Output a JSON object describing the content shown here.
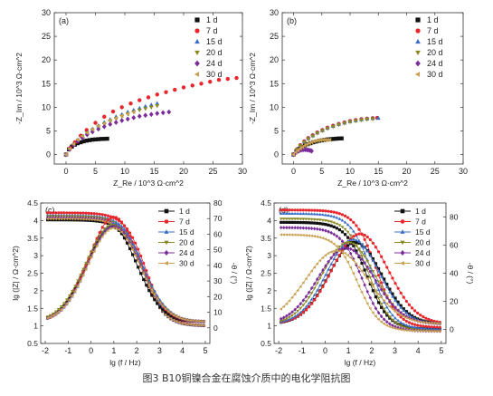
{
  "caption": "图3 B10铜镍合金在腐蚀介质中的电化学阻抗图",
  "colors": {
    "1 d": "#111111",
    "7 d": "#e8262c",
    "15 d": "#3a6fc8",
    "20 d": "#8a8a24",
    "24 d": "#7a2c9a",
    "30 d": "#c8a050"
  },
  "chart_data": [
    {
      "panel": "(a)",
      "type": "scatter",
      "xlabel": "Z_Re / 10^3 Ω·cm^2",
      "ylabel": "-Z_Im / 10^3 Ω·cm^2",
      "xlim": [
        -2,
        30
      ],
      "ylim": [
        -2,
        30
      ],
      "xticks": [
        0,
        5,
        10,
        15,
        20,
        25,
        30
      ],
      "yticks": [
        0,
        5,
        10,
        15,
        20,
        25,
        30
      ],
      "legend": "top-right",
      "series": [
        {
          "name": "1 d",
          "marker": "square",
          "x": [
            0,
            0.5,
            1,
            1.5,
            2,
            2.5,
            3,
            3.5,
            4,
            4.5,
            5,
            5.5,
            6,
            6.5,
            7
          ],
          "y": [
            0,
            1.1,
            1.7,
            2.1,
            2.4,
            2.6,
            2.8,
            2.95,
            3.05,
            3.15,
            3.2,
            3.25,
            3.3,
            3.32,
            3.35
          ]
        },
        {
          "name": "7 d",
          "marker": "circle",
          "x": [
            0,
            0.7,
            1.5,
            2.5,
            3.5,
            5,
            6.5,
            8,
            9.5,
            11,
            12.5,
            14,
            15.5,
            17,
            18.5,
            20,
            21.5,
            23,
            24.5,
            26,
            27.5,
            29
          ],
          "y": [
            0,
            1.4,
            2.6,
            4,
            5.2,
            6.7,
            8,
            9.1,
            10,
            10.8,
            11.5,
            12.1,
            12.7,
            13.2,
            13.7,
            14.2,
            14.6,
            15,
            15.4,
            15.8,
            16,
            16.2
          ]
        },
        {
          "name": "15 d",
          "marker": "triangle-up",
          "x": [
            0,
            0.6,
            1.3,
            2,
            2.8,
            3.6,
            4.5,
            5.5,
            6.5,
            7.5,
            8.5,
            9.5,
            10.5,
            11.5,
            12.5,
            13.5,
            14.5,
            15.5
          ],
          "y": [
            0,
            1.2,
            2.2,
            3.1,
            3.9,
            4.7,
            5.4,
            6.1,
            6.8,
            7.4,
            8,
            8.5,
            9,
            9.4,
            9.8,
            10.2,
            10.5,
            10.8
          ]
        },
        {
          "name": "20 d",
          "marker": "triangle-down",
          "x": [
            0,
            0.6,
            1.3,
            2,
            2.8,
            3.6,
            4.5,
            5.5,
            6.5,
            7.5,
            8.5,
            9.5,
            10.5,
            11.5,
            12.5,
            13.5,
            14.5,
            15.5
          ],
          "y": [
            0,
            1.15,
            2.1,
            3,
            3.8,
            4.5,
            5.2,
            5.9,
            6.5,
            7.1,
            7.6,
            8.1,
            8.6,
            9,
            9.4,
            9.7,
            10,
            10.3
          ]
        },
        {
          "name": "24 d",
          "marker": "diamond",
          "x": [
            0,
            0.6,
            1.3,
            2,
            2.8,
            3.6,
            4.5,
            5.5,
            6.5,
            7.5,
            8.5,
            9.5,
            10.5,
            11.5,
            12.5,
            13.5,
            14.5,
            15.5,
            16.5,
            17.5
          ],
          "y": [
            0,
            1.1,
            2,
            2.8,
            3.5,
            4.2,
            4.8,
            5.4,
            5.9,
            6.4,
            6.8,
            7.2,
            7.5,
            7.8,
            8.1,
            8.3,
            8.5,
            8.7,
            8.85,
            9
          ]
        },
        {
          "name": "30 d",
          "marker": "triangle-left",
          "x": [
            0,
            0.6,
            1.3,
            2,
            2.8,
            3.6,
            4.5,
            5.5,
            6.5,
            7.5,
            8.5,
            9.5,
            10.5,
            11.5
          ],
          "y": [
            0,
            1.2,
            2.2,
            3.1,
            3.9,
            4.6,
            5.3,
            6,
            6.6,
            7.2,
            7.7,
            8.2,
            8.6,
            9
          ]
        }
      ]
    },
    {
      "panel": "(b)",
      "type": "scatter",
      "xlabel": "Z_Re / 10^3 Ω·cm^2",
      "ylabel": "-Z_Im / 10^3 Ω·cm^2",
      "xlim": [
        -2,
        30
      ],
      "ylim": [
        -2,
        30
      ],
      "xticks": [
        0,
        5,
        10,
        15,
        20,
        25,
        30
      ],
      "yticks": [
        0,
        5,
        10,
        15,
        20,
        25,
        30
      ],
      "legend": "top-right",
      "series": [
        {
          "name": "1 d",
          "marker": "square",
          "x": [
            0,
            0.5,
            1,
            1.5,
            2,
            2.5,
            3,
            3.5,
            4,
            4.5,
            5,
            5.5,
            6,
            6.5,
            7,
            7.5,
            8,
            8.5
          ],
          "y": [
            0,
            0.7,
            1.2,
            1.6,
            1.9,
            2.2,
            2.4,
            2.6,
            2.75,
            2.9,
            3,
            3.1,
            3.2,
            3.25,
            3.3,
            3.35,
            3.4,
            3.42
          ]
        },
        {
          "name": "7 d",
          "marker": "circle",
          "x": [
            0,
            0.6,
            1.2,
            1.9,
            2.6,
            3.4,
            4.2,
            5.1,
            6,
            7,
            8,
            9,
            10,
            11,
            12,
            13,
            14,
            14.8
          ],
          "y": [
            0,
            1.1,
            2,
            2.8,
            3.5,
            4.1,
            4.7,
            5.2,
            5.7,
            6.1,
            6.5,
            6.8,
            7.1,
            7.3,
            7.5,
            7.6,
            7.7,
            7.75
          ]
        },
        {
          "name": "15 d",
          "marker": "triangle-up",
          "x": [
            0,
            0.6,
            1.2,
            1.9,
            2.6,
            3.4,
            4.2,
            5.1,
            6,
            7,
            8,
            9,
            10,
            11,
            12,
            13,
            14,
            15
          ],
          "y": [
            0,
            1.05,
            1.9,
            2.7,
            3.4,
            4,
            4.6,
            5.1,
            5.6,
            6,
            6.4,
            6.7,
            7,
            7.2,
            7.4,
            7.55,
            7.65,
            7.7
          ]
        },
        {
          "name": "20 d",
          "marker": "triangle-down",
          "x": [
            0,
            0.6,
            1.2,
            1.9,
            2.6,
            3.4,
            4.2,
            5.1,
            6,
            7,
            8,
            9,
            10,
            11,
            12,
            13,
            14
          ],
          "y": [
            0,
            1,
            1.85,
            2.6,
            3.3,
            3.9,
            4.5,
            5,
            5.5,
            5.9,
            6.3,
            6.6,
            6.9,
            7.1,
            7.3,
            7.45,
            7.5
          ]
        },
        {
          "name": "24 d",
          "marker": "diamond",
          "x": [
            0,
            0.3,
            0.6,
            0.9,
            1.2,
            1.5,
            1.8,
            2.1,
            2.4,
            2.7,
            3,
            3.2
          ],
          "y": [
            0,
            0.3,
            0.55,
            0.75,
            0.9,
            1,
            1.05,
            1.05,
            1,
            0.95,
            0.85,
            0.75
          ]
        },
        {
          "name": "30 d",
          "marker": "triangle-left",
          "x": [
            0,
            0.4,
            0.8,
            1.2,
            1.6,
            2,
            2.4,
            2.8,
            3.2,
            3.6,
            4,
            4.4,
            4.8,
            5.2,
            5.6,
            6,
            6.4
          ],
          "y": [
            0,
            0.5,
            0.9,
            1.3,
            1.6,
            1.9,
            2.2,
            2.4,
            2.6,
            2.8,
            2.9,
            3,
            3.05,
            3.1,
            3.12,
            3.12,
            3.1
          ]
        }
      ]
    },
    {
      "panel": "(c)",
      "type": "line",
      "xlabel": "lg (f / Hz)",
      "ylabel": "lg (|Z| / Ω·cm^2)",
      "y2label": "-θ / (°)",
      "xlim": [
        -2.2,
        5.2
      ],
      "ylim": [
        0.5,
        4.5
      ],
      "y2lim": [
        -10,
        80
      ],
      "xticks": [
        -2,
        -1,
        0,
        1,
        2,
        3,
        4,
        5
      ],
      "yticks": [
        0.5,
        1.0,
        1.5,
        2.0,
        2.5,
        3.0,
        3.5,
        4.0,
        4.5
      ],
      "y2ticks": [
        0,
        10,
        20,
        30,
        40,
        50,
        60,
        70,
        80
      ],
      "legend": "top-right",
      "modulus": [
        {
          "name": "1 d",
          "hi": 4.02,
          "lo": 1.0,
          "fc": 2.3
        },
        {
          "name": "7 d",
          "hi": 4.22,
          "lo": 1.0,
          "fc": 2.4
        },
        {
          "name": "15 d",
          "hi": 4.15,
          "lo": 1.0,
          "fc": 2.35
        },
        {
          "name": "20 d",
          "hi": 4.12,
          "lo": 1.0,
          "fc": 2.3
        },
        {
          "name": "24 d",
          "hi": 4.08,
          "lo": 1.0,
          "fc": 2.3
        },
        {
          "name": "30 d",
          "hi": 4.05,
          "lo": 1.0,
          "fc": 2.3
        }
      ],
      "phase": [
        {
          "name": "1 d",
          "peak": 65,
          "fp": 0.9,
          "w": 1.55
        },
        {
          "name": "7 d",
          "peak": 71,
          "fp": 1.0,
          "w": 1.55
        },
        {
          "name": "15 d",
          "peak": 67,
          "fp": 1.05,
          "w": 1.6
        },
        {
          "name": "20 d",
          "peak": 66,
          "fp": 0.95,
          "w": 1.65
        },
        {
          "name": "24 d",
          "peak": 65,
          "fp": 1.0,
          "w": 1.6
        },
        {
          "name": "30 d",
          "peak": 64,
          "fp": 1.0,
          "w": 1.6
        }
      ]
    },
    {
      "panel": "(d)",
      "type": "line",
      "xlabel": "lg (f / Hz)",
      "ylabel": "lg (|Z| / Ω·cm^2)",
      "y2label": "-θ / (°)",
      "xlim": [
        -2.2,
        5.2
      ],
      "ylim": [
        0.5,
        4.5
      ],
      "y2lim": [
        -10,
        90
      ],
      "xticks": [
        -2,
        -1,
        0,
        1,
        2,
        3,
        4,
        5
      ],
      "yticks": [
        0.5,
        1.0,
        1.5,
        2.0,
        2.5,
        3.0,
        3.5,
        4.0,
        4.5
      ],
      "y2ticks": [
        0,
        20,
        40,
        60,
        80
      ],
      "legend": "top-right",
      "modulus": [
        {
          "name": "1 d",
          "hi": 3.95,
          "lo": 0.9,
          "fc": 1.8
        },
        {
          "name": "7 d",
          "hi": 4.3,
          "lo": 0.95,
          "fc": 2.2
        },
        {
          "name": "15 d",
          "hi": 4.2,
          "lo": 0.9,
          "fc": 2.0
        },
        {
          "name": "20 d",
          "hi": 4.05,
          "lo": 0.85,
          "fc": 1.9
        },
        {
          "name": "24 d",
          "hi": 3.8,
          "lo": 0.85,
          "fc": 1.6
        },
        {
          "name": "30 d",
          "hi": 3.6,
          "lo": 0.85,
          "fc": 1.4
        }
      ],
      "phase": [
        {
          "name": "1 d",
          "peak": 62,
          "fp": 1.3,
          "w": 1.6
        },
        {
          "name": "7 d",
          "peak": 68,
          "fp": 1.5,
          "w": 1.7
        },
        {
          "name": "15 d",
          "peak": 64,
          "fp": 1.2,
          "w": 1.6
        },
        {
          "name": "20 d",
          "peak": 62,
          "fp": 1.0,
          "w": 1.6
        },
        {
          "name": "24 d",
          "peak": 58,
          "fp": 0.9,
          "w": 1.7
        },
        {
          "name": "30 d",
          "peak": 56,
          "fp": 0.5,
          "w": 1.9
        }
      ]
    }
  ]
}
